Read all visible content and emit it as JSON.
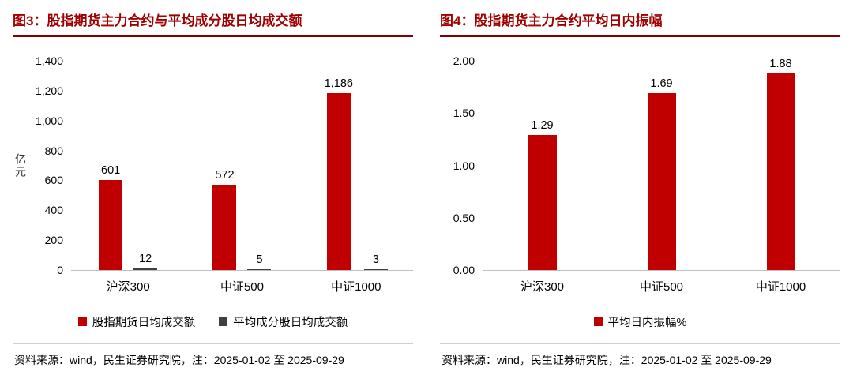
{
  "chart_data": [
    {
      "type": "bar",
      "title": "图3：股指期货主力合约与平均成分股日均成交额",
      "categories": [
        "沪深300",
        "中证500",
        "中证1000"
      ],
      "series": [
        {
          "name": "股指期货日均成交额",
          "values": [
            601,
            572,
            1186
          ],
          "labels": [
            "601",
            "572",
            "1,186"
          ],
          "color": "#c00000"
        },
        {
          "name": "平均成分股日均成交额",
          "values": [
            12,
            5,
            3
          ],
          "labels": [
            "12",
            "5",
            "3"
          ],
          "color": "#404040"
        }
      ],
      "xlabel": "",
      "ylabel": "亿元",
      "ylim": [
        0,
        1400
      ],
      "yticks": [
        0,
        200,
        400,
        600,
        800,
        1000,
        1200,
        1400
      ],
      "ytick_labels": [
        "0",
        "200",
        "400",
        "600",
        "800",
        "1,000",
        "1,200",
        "1,400"
      ],
      "grid": false,
      "legend_position": "bottom",
      "source": "资料来源：wind，民生证券研究院，注：2025-01-02 至 2025-09-29"
    },
    {
      "type": "bar",
      "title": "图4：股指期货主力合约平均日内振幅",
      "categories": [
        "沪深300",
        "中证500",
        "中证1000"
      ],
      "series": [
        {
          "name": "平均日内振幅%",
          "values": [
            1.29,
            1.69,
            1.88
          ],
          "labels": [
            "1.29",
            "1.69",
            "1.88"
          ],
          "color": "#c00000"
        }
      ],
      "xlabel": "",
      "ylabel": "",
      "ylim": [
        0,
        2
      ],
      "yticks": [
        0,
        0.5,
        1,
        1.5,
        2
      ],
      "ytick_labels": [
        "0.00",
        "0.50",
        "1.00",
        "1.50",
        "2.00"
      ],
      "grid": false,
      "legend_position": "bottom",
      "source": "资料来源：wind，民生证券研究院，注：2025-01-02 至 2025-09-29"
    }
  ],
  "theme": {
    "title_color": "#a00000",
    "title_underline": "#870000",
    "bar_red": "#c00000",
    "bar_gray": "#404040",
    "baseline_color": "#bfbfbf"
  }
}
